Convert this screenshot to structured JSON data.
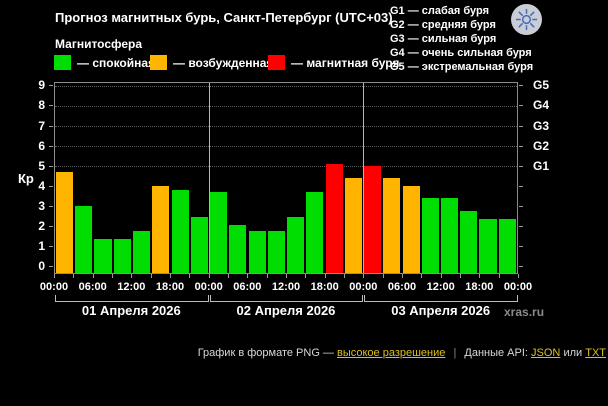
{
  "title": "Прогноз магнитных бурь, Санкт-Петербург (UTC+03)",
  "watermark": "xras.ru",
  "ylabel": "Кр",
  "legend": {
    "title": "Магнитосфера",
    "items": [
      {
        "label": "— спокойная",
        "status": "quiet"
      },
      {
        "label": "— возбужденная",
        "status": "excited"
      },
      {
        "label": "— магнитная буря",
        "status": "storm"
      }
    ]
  },
  "g_legend": [
    "G1 — слабая буря",
    "G2 — средняя буря",
    "G3 — сильная буря",
    "G4 — очень сильная буря",
    "G5 — экстремальная буря"
  ],
  "colors": {
    "quiet": "#00dd00",
    "excited": "#ffb400",
    "storm": "#ff0000",
    "background": "#000000",
    "text": "#ffffff",
    "axis": "#8c8c8c",
    "link": "#dcc11e",
    "muted": "#8a8a8a"
  },
  "chart_data": {
    "type": "bar",
    "title": "Прогноз магнитных бурь, Санкт-Петербург (UTC+03)",
    "ylabel": "Кр",
    "ylim": [
      0,
      9
    ],
    "yticks": [
      0,
      1,
      2,
      3,
      4,
      5,
      6,
      7,
      8,
      9
    ],
    "grid_levels": [
      5,
      6,
      7,
      8,
      9
    ],
    "right_axis": [
      {
        "kp": 5,
        "label": "G1"
      },
      {
        "kp": 6,
        "label": "G2"
      },
      {
        "kp": 7,
        "label": "G3"
      },
      {
        "kp": 8,
        "label": "G4"
      },
      {
        "kp": 9,
        "label": "G5"
      }
    ],
    "x_tick_labels": [
      "00:00",
      "06:00",
      "12:00",
      "18:00",
      "00:00",
      "06:00",
      "12:00",
      "18:00",
      "00:00",
      "06:00",
      "12:00",
      "18:00",
      "00:00"
    ],
    "bar_interval_hours": 3,
    "days": [
      {
        "date": "01 Апреля 2026",
        "values": [
          4.7,
          3.0,
          1.3,
          1.3,
          1.7,
          4.0,
          3.8,
          2.4
        ],
        "statuses": [
          "excited",
          "quiet",
          "quiet",
          "quiet",
          "quiet",
          "excited",
          "quiet",
          "quiet"
        ]
      },
      {
        "date": "02 Апреля 2026",
        "values": [
          3.7,
          2.0,
          1.7,
          1.7,
          2.4,
          3.7,
          5.1,
          4.4
        ],
        "statuses": [
          "quiet",
          "quiet",
          "quiet",
          "quiet",
          "quiet",
          "quiet",
          "storm",
          "excited"
        ]
      },
      {
        "date": "03 Апреля 2026",
        "values": [
          5.0,
          4.4,
          4.0,
          3.4,
          3.4,
          2.7,
          2.3,
          2.3
        ],
        "statuses": [
          "storm",
          "excited",
          "excited",
          "quiet",
          "quiet",
          "quiet",
          "quiet",
          "quiet"
        ]
      }
    ]
  },
  "footer": {
    "prefix": "График в формате PNG —",
    "hires_link": "высокое разрешение",
    "separator": "|",
    "api_label": "Данные API:",
    "json_link": "JSON",
    "conjunction": "или",
    "txt_link": "TXT"
  }
}
